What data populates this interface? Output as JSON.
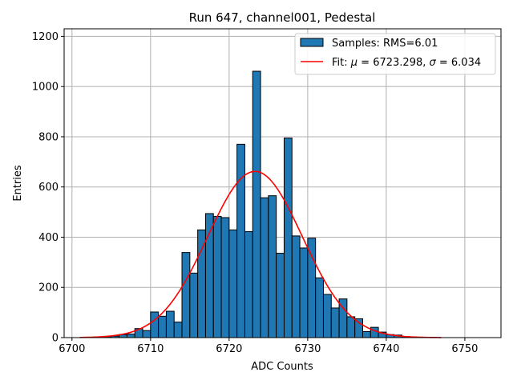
{
  "chart_data": {
    "type": "bar",
    "title": "Run 647, channel001, Pedestal",
    "xlabel": "ADC Counts",
    "ylabel": "Entries",
    "xlim": [
      6699,
      6754.6
    ],
    "ylim": [
      0,
      1230
    ],
    "xticks": [
      6700,
      6710,
      6720,
      6730,
      6740,
      6750
    ],
    "yticks": [
      0,
      200,
      400,
      600,
      800,
      1000,
      1200
    ],
    "grid": true,
    "legend_position": "top-right",
    "colors": {
      "bars": "#1f77b4",
      "bar_edge": "#000000",
      "fit": "#ff0000"
    },
    "bins": {
      "start": 6701,
      "width": 1,
      "counts": [
        0,
        1,
        2,
        4,
        6,
        12,
        14,
        36,
        28,
        102,
        85,
        105,
        62,
        339,
        257,
        429,
        494,
        483,
        478,
        429,
        770,
        422,
        1061,
        557,
        565,
        336,
        795,
        405,
        357,
        396,
        238,
        172,
        118,
        154,
        83,
        75,
        24,
        41,
        22,
        12,
        10,
        4,
        2,
        1,
        1,
        0,
        0,
        0,
        0,
        0,
        0
      ]
    },
    "fit": {
      "mu": 6723.298,
      "sigma": 6.034,
      "amplitude": 662,
      "x_range": [
        6701,
        6747
      ]
    },
    "legend": [
      {
        "label": "Samples: RMS=6.01",
        "kind": "patch"
      },
      {
        "label_prefix": "Fit: ",
        "mu_symbol": "μ",
        "mu_text": " = 6723.298, ",
        "sigma_symbol": "σ",
        "sigma_text": " = 6.034",
        "kind": "line"
      }
    ]
  }
}
